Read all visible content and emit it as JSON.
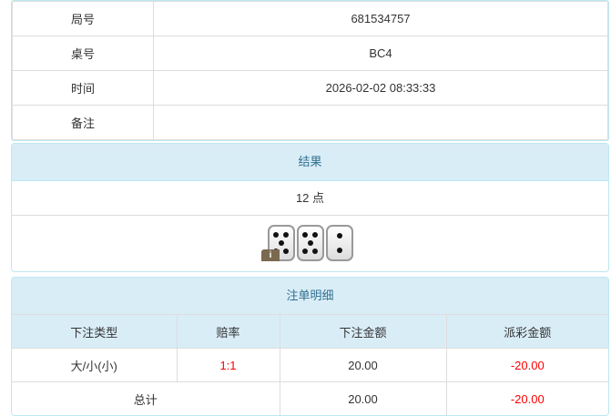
{
  "info": {
    "rows": [
      {
        "label": "局号",
        "value": "681534757"
      },
      {
        "label": "桌号",
        "value": "BC4"
      },
      {
        "label": "时间",
        "value": "2026-02-02 08:33:33"
      },
      {
        "label": "备注",
        "value": ""
      }
    ]
  },
  "result": {
    "title": "结果",
    "points": "12 点",
    "dice": [
      5,
      5,
      2
    ],
    "info_badge": "i"
  },
  "bets": {
    "title": "注单明细",
    "headers": [
      "下注类型",
      "赔率",
      "下注金额",
      "派彩金额"
    ],
    "rows": [
      {
        "type": "大/小(小)",
        "odds": "1:1",
        "amount": "20.00",
        "payout": "-20.00"
      }
    ],
    "total": {
      "label": "总计",
      "amount": "20.00",
      "payout": "-20.00"
    }
  },
  "colors": {
    "negative": "#ff0000",
    "header_bg": "#d9edf7"
  }
}
